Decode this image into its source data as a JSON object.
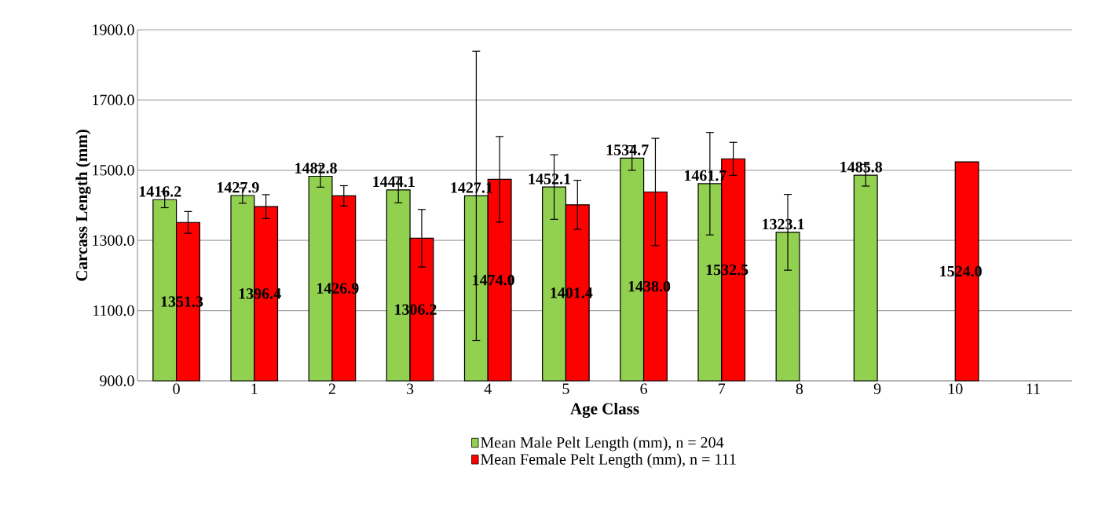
{
  "chart_data": {
    "type": "bar",
    "xlabel": "Age Class",
    "ylabel": "Carcass Length (mm)",
    "categories": [
      "0",
      "1",
      "2",
      "3",
      "4",
      "5",
      "6",
      "7",
      "8",
      "9",
      "10",
      "11"
    ],
    "series": [
      {
        "name": "Mean Male Pelt Length (mm), n = 204",
        "color": "#92d050",
        "values": [
          1416.2,
          1427.9,
          1482.8,
          1444.1,
          1427.1,
          1452.1,
          1534.7,
          1461.7,
          1323.1,
          1485.8,
          null,
          null
        ],
        "errors": [
          23,
          22,
          31,
          37,
          412,
          92,
          35,
          146,
          108,
          31,
          null,
          null
        ],
        "value_labels": [
          "1416.2",
          "1427.9",
          "1482.8",
          "1444.1",
          "1427.1",
          "1452.1",
          "1534.7",
          "1461.7",
          "1323.1",
          "1485.8",
          null,
          null
        ]
      },
      {
        "name": "Mean Female Pelt Length (mm), n = 111",
        "color": "#ff0000",
        "values": [
          1351.3,
          1396.4,
          1426.9,
          1306.2,
          1474.0,
          1401.4,
          1438.0,
          1532.5,
          null,
          null,
          1524.0,
          null
        ],
        "errors": [
          31,
          34,
          29,
          82,
          122,
          70,
          153,
          47,
          null,
          null,
          null,
          null
        ],
        "value_labels": [
          "1351.3",
          "1396.4",
          "1426.9",
          "1306.2",
          "1474.0",
          "1401.4",
          "1438.0",
          "1532.5",
          null,
          null,
          "1524.0",
          null
        ]
      }
    ],
    "ylim": [
      900,
      1900
    ],
    "yticks": [
      {
        "value": 900,
        "label": "900.0"
      },
      {
        "value": 1100,
        "label": "1100.0"
      },
      {
        "value": 1300,
        "label": "1300.0"
      },
      {
        "value": 1500,
        "label": "1500.0"
      },
      {
        "value": 1700,
        "label": "1700.0"
      },
      {
        "value": 1900,
        "label": "1900.0"
      }
    ],
    "grid": "y",
    "legend": "bottom"
  }
}
